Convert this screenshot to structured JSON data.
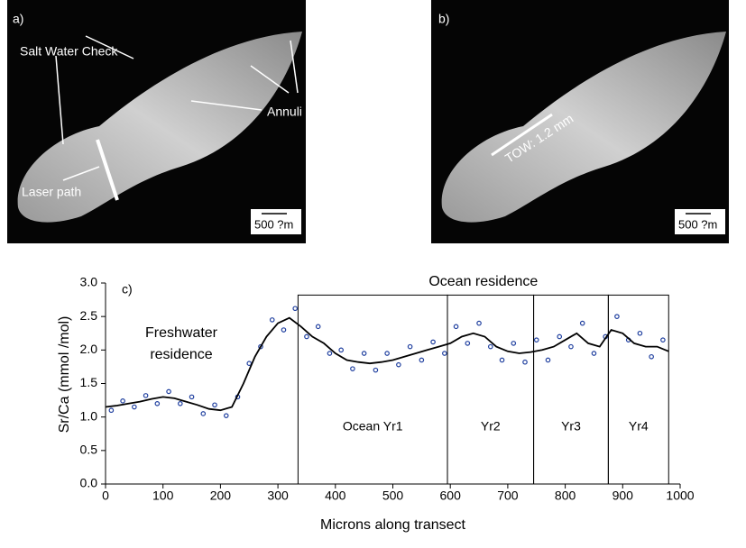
{
  "panels": {
    "a": {
      "label": "a)",
      "salt_water_check": "Salt Water Check",
      "annuli": "Annuli",
      "laser_path": "Laser path",
      "scale": "500 ?m"
    },
    "b": {
      "label": "b)",
      "tow": "TOW: 1.2 mm",
      "scale": "500 ?m"
    }
  },
  "chart_data": {
    "type": "line",
    "panel_label": "c)",
    "x_label": "Microns along transect",
    "y_label": "Sr/Ca (mmol /mol)",
    "xlim": [
      0,
      1000
    ],
    "xticks": [
      0,
      100,
      200,
      300,
      400,
      500,
      600,
      700,
      800,
      900,
      1000
    ],
    "ylim": [
      0,
      3
    ],
    "yticks": [
      {
        "value": 0,
        "label": "0.0"
      },
      {
        "value": 0.5,
        "label": "0.5"
      },
      {
        "value": 1,
        "label": "1.0"
      },
      {
        "value": 1.5,
        "label": "1.5"
      },
      {
        "value": 2,
        "label": "2.0"
      },
      {
        "value": 2.5,
        "label": "2.5"
      },
      {
        "value": 3,
        "label": "3.0"
      }
    ],
    "annotations": {
      "ocean": "Ocean residence",
      "freshwater": [
        "Freshwater",
        "residence"
      ]
    },
    "periods": [
      {
        "label": "Ocean Yr1",
        "start": 335,
        "end": 595
      },
      {
        "label": "Yr2",
        "start": 595,
        "end": 745
      },
      {
        "label": "Yr3",
        "start": 745,
        "end": 875
      },
      {
        "label": "Yr4",
        "start": 875,
        "end": 980
      }
    ],
    "periods_top": 2.82,
    "scatter": {
      "color": "#1f3f9f",
      "x": [
        10,
        30,
        50,
        70,
        90,
        110,
        130,
        150,
        170,
        190,
        210,
        230,
        250,
        270,
        290,
        310,
        330,
        350,
        370,
        390,
        410,
        430,
        450,
        470,
        490,
        510,
        530,
        550,
        570,
        590,
        610,
        630,
        650,
        670,
        690,
        710,
        730,
        750,
        770,
        790,
        810,
        830,
        850,
        870,
        890,
        910,
        930,
        950,
        970
      ],
      "values": [
        1.1,
        1.24,
        1.15,
        1.32,
        1.2,
        1.38,
        1.2,
        1.3,
        1.05,
        1.18,
        1.02,
        1.3,
        1.8,
        2.05,
        2.45,
        2.3,
        2.62,
        2.2,
        2.35,
        1.95,
        2.0,
        1.72,
        1.95,
        1.7,
        1.95,
        1.78,
        2.05,
        1.85,
        2.12,
        1.95,
        2.35,
        2.1,
        2.4,
        2.05,
        1.85,
        2.1,
        1.82,
        2.15,
        1.85,
        2.2,
        2.05,
        2.4,
        1.95,
        2.2,
        2.5,
        2.15,
        2.25,
        1.9,
        2.15
      ]
    },
    "line": {
      "color": "#000000",
      "x": [
        0,
        20,
        40,
        60,
        80,
        100,
        120,
        140,
        160,
        180,
        200,
        220,
        240,
        260,
        280,
        300,
        320,
        340,
        360,
        380,
        400,
        420,
        440,
        460,
        480,
        500,
        520,
        540,
        560,
        580,
        600,
        620,
        640,
        660,
        680,
        700,
        720,
        740,
        760,
        780,
        800,
        820,
        840,
        860,
        880,
        900,
        920,
        940,
        960,
        980
      ],
      "values": [
        1.15,
        1.17,
        1.2,
        1.23,
        1.27,
        1.3,
        1.28,
        1.23,
        1.18,
        1.12,
        1.1,
        1.15,
        1.5,
        1.9,
        2.2,
        2.4,
        2.48,
        2.35,
        2.2,
        2.1,
        1.95,
        1.85,
        1.82,
        1.8,
        1.82,
        1.85,
        1.9,
        1.95,
        2.0,
        2.05,
        2.1,
        2.2,
        2.25,
        2.2,
        2.05,
        1.98,
        1.95,
        1.97,
        2.0,
        2.05,
        2.15,
        2.25,
        2.1,
        2.05,
        2.3,
        2.25,
        2.1,
        2.05,
        2.05,
        1.98
      ]
    }
  }
}
